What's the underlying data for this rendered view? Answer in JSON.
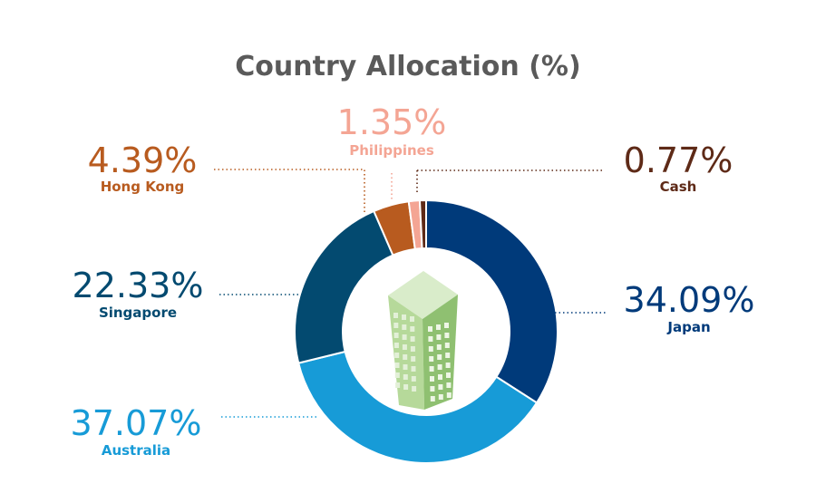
{
  "chart_data": {
    "type": "pie",
    "title": "Country Allocation (%)",
    "slices": [
      {
        "label": "Japan",
        "value": 34.09,
        "value_text": "34.09%",
        "color": "#003a7a"
      },
      {
        "label": "Australia",
        "value": 37.07,
        "value_text": "37.07%",
        "color": "#179bd7"
      },
      {
        "label": "Singapore",
        "value": 22.33,
        "value_text": "22.33%",
        "color": "#034a70"
      },
      {
        "label": "Hong Kong",
        "value": 4.39,
        "value_text": "4.39%",
        "color": "#b85b1f"
      },
      {
        "label": "Philippines",
        "value": 1.35,
        "value_text": "1.35%",
        "color": "#f4a594"
      },
      {
        "label": "Cash",
        "value": 0.77,
        "value_text": "0.77%",
        "color": "#5e2a17"
      }
    ],
    "donut": true,
    "center_image": "building-icon"
  }
}
